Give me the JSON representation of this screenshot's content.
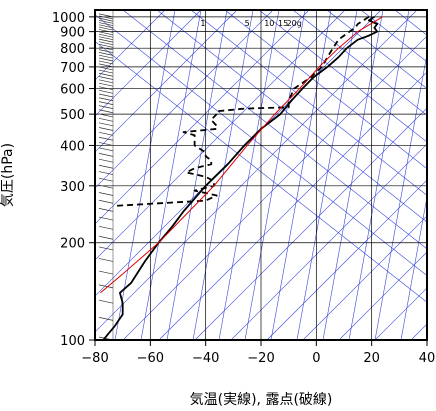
{
  "chart_data": {
    "type": "line",
    "title": "",
    "xlabel": "気温(実線), 露点(破線)",
    "ylabel": "気圧(hPa)",
    "xlim": [
      -80,
      40
    ],
    "ylim_hpa": [
      1050,
      100
    ],
    "y_scale": "log",
    "x_ticks": [
      "−80",
      "−60",
      "−40",
      "−20",
      "0",
      "20",
      "40"
    ],
    "x_tick_values": [
      -80,
      -60,
      -40,
      -20,
      0,
      20,
      40
    ],
    "y_ticks": [
      "100",
      "200",
      "300",
      "400",
      "500",
      "600",
      "700",
      "800",
      "900",
      "1000"
    ],
    "y_tick_values": [
      100,
      200,
      300,
      400,
      500,
      600,
      700,
      800,
      900,
      1000
    ],
    "grid": true,
    "mixing_ratio_labels": [
      "1",
      "5",
      "10",
      "15",
      "20g"
    ],
    "mixing_ratio_x": [
      -41,
      -25,
      -17,
      -12,
      -8
    ],
    "colors": {
      "background_lines": "#3344dd",
      "temperature": "#000000",
      "dewpoint": "#000000",
      "parcel": "#dd0000",
      "grid": "#000000"
    },
    "series": [
      {
        "style": "solid",
        "p": [
          1000,
          975,
          950,
          925,
          900,
          875,
          850,
          800,
          750,
          700,
          650,
          600,
          550,
          500,
          450,
          400,
          350,
          300,
          250,
          225,
          200,
          175,
          150,
          140,
          130,
          120,
          110,
          105,
          100
        ],
        "x_at_p": [
          21,
          19,
          22,
          21,
          22,
          19,
          15,
          11,
          8,
          4,
          -1,
          -5,
          -9,
          -13,
          -20,
          -26,
          -32,
          -40,
          -48,
          -52,
          -57,
          -62,
          -67,
          -71,
          -70,
          -70,
          -73,
          -75,
          -77
        ]
      },
      {
        "style": "dashed",
        "p": [
          1000,
          975,
          950,
          925,
          900,
          875,
          850,
          800,
          750,
          700,
          650,
          600,
          550,
          525,
          520,
          510,
          500,
          480,
          460,
          450,
          440,
          430,
          420,
          400,
          380,
          370,
          360,
          350,
          340,
          330,
          320,
          310,
          300,
          290,
          280,
          270,
          260
        ],
        "x_at_p": [
          19,
          17,
          15,
          14,
          12,
          10,
          8,
          6,
          4,
          2,
          -2,
          -8,
          -10,
          -10,
          -26,
          -36,
          -36,
          -38,
          -36,
          -36,
          -48,
          -44,
          -44,
          -44,
          -40,
          -40,
          -38,
          -38,
          -44,
          -47,
          -40,
          -37,
          -37,
          -44,
          -36,
          -40,
          -73
        ]
      },
      {
        "style": "solid",
        "p": [
          1000,
          900,
          800,
          700,
          600,
          500,
          400,
          300,
          250,
          200,
          160,
          140
        ],
        "x_at_p": [
          24,
          15,
          8,
          1,
          -6,
          -15,
          -25,
          -37,
          -46,
          -57,
          -70,
          -78
        ]
      }
    ]
  }
}
